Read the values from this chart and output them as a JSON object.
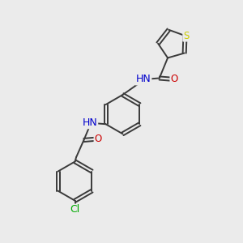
{
  "background_color": "#ebebeb",
  "bond_color": "#3a3a3a",
  "atom_colors": {
    "S": "#cccc00",
    "N": "#0000cc",
    "O": "#cc0000",
    "Cl": "#00aa00",
    "C": "#3a3a3a"
  },
  "figsize": [
    3.0,
    3.0
  ],
  "dpi": 100
}
